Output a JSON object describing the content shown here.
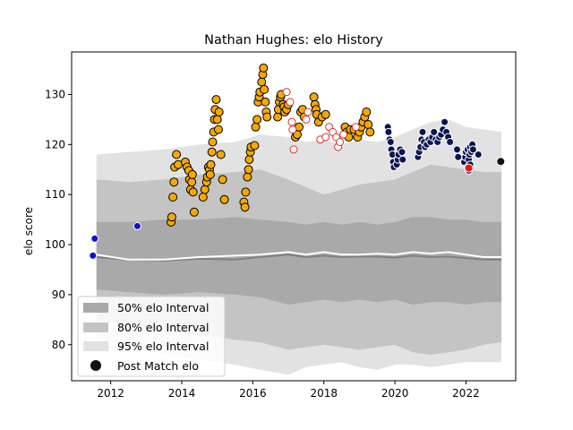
{
  "chart_data": {
    "type": "scatter",
    "title": "Nathan Hughes: elo History",
    "xlabel": "",
    "ylabel": "elo score",
    "xlim": [
      2010.9,
      2023.4
    ],
    "ylim": [
      72.8,
      138.5
    ],
    "x_ticks": [
      2012,
      2014,
      2016,
      2018,
      2020,
      2022
    ],
    "y_ticks": [
      80,
      90,
      100,
      110,
      120,
      130
    ],
    "grid": false,
    "legend_position": "lower-left",
    "legend": [
      {
        "label": "50% elo Interval",
        "kind": "band",
        "color": "#a9a9a9"
      },
      {
        "label": "80% elo Interval",
        "kind": "band",
        "color": "#c4c4c4"
      },
      {
        "label": "95% elo Interval",
        "kind": "band",
        "color": "#e2e2e2"
      },
      {
        "label": "Post Match elo",
        "kind": "marker",
        "color": "#000000"
      }
    ],
    "colors": {
      "band_50": "#a9a9a9",
      "band_80": "#c4c4c4",
      "band_95": "#e2e2e2",
      "mean_line": "#ffffff",
      "median_line": "#808080",
      "blue": "#1010cc",
      "orange": "#f5a800",
      "hollow_red": "#e03030",
      "navy": "#0b1650",
      "red": "#ee1111",
      "black": "#111111"
    },
    "intervals": {
      "x": [
        2011.6,
        2012.5,
        2013.5,
        2014.5,
        2015.5,
        2016.2,
        2017.0,
        2017.5,
        2018.0,
        2018.5,
        2019.0,
        2019.5,
        2020.0,
        2020.5,
        2021.0,
        2021.5,
        2022.0,
        2022.5,
        2023.0
      ],
      "hi95": [
        118.0,
        118.5,
        119.0,
        120.0,
        120.5,
        122.0,
        121.5,
        120.5,
        121.0,
        120.0,
        121.0,
        120.5,
        121.5,
        123.0,
        124.5,
        125.0,
        123.5,
        123.0,
        122.5
      ],
      "hi80": [
        113.0,
        112.5,
        113.0,
        114.0,
        114.5,
        115.0,
        113.0,
        111.5,
        110.0,
        111.0,
        112.0,
        112.5,
        113.0,
        114.5,
        116.0,
        115.5,
        115.0,
        114.5,
        114.5
      ],
      "hi50": [
        104.5,
        104.5,
        105.0,
        105.0,
        105.5,
        105.0,
        104.5,
        104.0,
        104.5,
        104.0,
        104.5,
        104.0,
        104.5,
        105.5,
        105.5,
        105.0,
        105.0,
        104.5,
        104.5
      ],
      "mean": [
        98.0,
        97.0,
        97.0,
        97.5,
        97.8,
        98.0,
        98.5,
        98.0,
        98.5,
        98.0,
        98.0,
        98.2,
        98.0,
        98.5,
        98.2,
        98.5,
        98.0,
        97.5,
        97.5
      ],
      "median": [
        97.5,
        97.0,
        96.8,
        97.2,
        97.0,
        97.5,
        98.0,
        97.5,
        97.8,
        97.5,
        97.6,
        97.6,
        97.4,
        97.8,
        97.5,
        97.6,
        97.3,
        97.0,
        97.0
      ],
      "lo50": [
        91.0,
        90.5,
        90.0,
        90.5,
        90.0,
        89.5,
        88.0,
        88.5,
        89.0,
        88.5,
        89.0,
        88.5,
        89.0,
        88.0,
        88.5,
        88.5,
        88.0,
        88.5,
        88.5
      ],
      "lo80": [
        85.0,
        84.0,
        82.5,
        82.0,
        81.0,
        80.5,
        79.0,
        79.5,
        80.0,
        79.5,
        79.0,
        79.5,
        80.0,
        78.5,
        78.0,
        78.5,
        79.0,
        80.0,
        80.5
      ],
      "lo95": [
        81.0,
        80.0,
        78.0,
        77.0,
        76.0,
        75.0,
        74.0,
        75.5,
        76.0,
        76.5,
        75.5,
        75.0,
        76.0,
        76.0,
        75.5,
        76.0,
        76.5,
        76.5,
        76.5
      ]
    },
    "series": [
      {
        "style": "blue",
        "points": [
          [
            2011.55,
            101.2
          ],
          [
            2011.5,
            97.8
          ],
          [
            2012.75,
            103.7
          ]
        ]
      },
      {
        "style": "orange",
        "points": [
          [
            2013.7,
            104.5
          ],
          [
            2013.72,
            105.5
          ],
          [
            2013.75,
            109.5
          ],
          [
            2013.78,
            112.5
          ],
          [
            2013.8,
            115.5
          ],
          [
            2013.85,
            118.0
          ],
          [
            2013.9,
            116.0
          ],
          [
            2014.1,
            116.5
          ],
          [
            2014.15,
            115.5
          ],
          [
            2014.2,
            114.8
          ],
          [
            2014.22,
            113.0
          ],
          [
            2014.25,
            111.0
          ],
          [
            2014.28,
            112.5
          ],
          [
            2014.3,
            114.0
          ],
          [
            2014.32,
            110.5
          ],
          [
            2014.35,
            106.5
          ],
          [
            2014.6,
            109.5
          ],
          [
            2014.65,
            111.0
          ],
          [
            2014.7,
            112.5
          ],
          [
            2014.72,
            113.5
          ],
          [
            2014.75,
            115.5
          ],
          [
            2014.78,
            115.0
          ],
          [
            2014.8,
            114.0
          ],
          [
            2014.82,
            116.0
          ],
          [
            2014.85,
            118.5
          ],
          [
            2014.87,
            120.5
          ],
          [
            2014.9,
            122.5
          ],
          [
            2014.92,
            125.0
          ],
          [
            2014.94,
            127.0
          ],
          [
            2014.97,
            129.0
          ],
          [
            2015.0,
            125.0
          ],
          [
            2015.03,
            123.0
          ],
          [
            2015.05,
            126.5
          ],
          [
            2015.1,
            118.0
          ],
          [
            2015.15,
            113.0
          ],
          [
            2015.2,
            109.0
          ],
          [
            2015.75,
            108.5
          ],
          [
            2015.78,
            107.5
          ],
          [
            2015.8,
            110.5
          ],
          [
            2015.85,
            113.5
          ],
          [
            2015.88,
            115.0
          ],
          [
            2015.9,
            117.0
          ],
          [
            2015.93,
            118.5
          ],
          [
            2015.95,
            119.5
          ],
          [
            2016.05,
            119.8
          ],
          [
            2016.08,
            123.5
          ],
          [
            2016.12,
            125.0
          ],
          [
            2016.15,
            128.5
          ],
          [
            2016.18,
            129.5
          ],
          [
            2016.2,
            130.5
          ],
          [
            2016.25,
            132.5
          ],
          [
            2016.28,
            134.0
          ],
          [
            2016.3,
            135.3
          ],
          [
            2016.32,
            131.0
          ],
          [
            2016.35,
            128.5
          ],
          [
            2016.38,
            126.5
          ],
          [
            2016.4,
            125.5
          ],
          [
            2016.7,
            125.5
          ],
          [
            2016.72,
            127.0
          ],
          [
            2016.75,
            128.5
          ],
          [
            2016.78,
            129.5
          ],
          [
            2016.8,
            130.0
          ],
          [
            2016.85,
            128.0
          ],
          [
            2016.88,
            127.5
          ],
          [
            2016.9,
            126.5
          ],
          [
            2016.95,
            127.0
          ],
          [
            2017.0,
            128.0
          ],
          [
            2017.2,
            121.5
          ],
          [
            2017.25,
            122.0
          ],
          [
            2017.3,
            123.5
          ],
          [
            2017.35,
            126.5
          ],
          [
            2017.4,
            127.0
          ],
          [
            2017.45,
            125.5
          ],
          [
            2017.72,
            129.5
          ],
          [
            2017.75,
            128.0
          ],
          [
            2017.78,
            127.0
          ],
          [
            2017.8,
            126.0
          ],
          [
            2017.85,
            124.5
          ],
          [
            2017.95,
            125.5
          ],
          [
            2018.05,
            126.0
          ],
          [
            2018.6,
            123.5
          ],
          [
            2018.65,
            122.5
          ],
          [
            2018.7,
            121.5
          ],
          [
            2018.75,
            123.0
          ],
          [
            2018.85,
            123.0
          ],
          [
            2018.95,
            121.5
          ],
          [
            2019.0,
            122.5
          ],
          [
            2019.05,
            123.5
          ],
          [
            2019.1,
            124.5
          ],
          [
            2019.15,
            125.5
          ],
          [
            2019.2,
            126.5
          ],
          [
            2019.25,
            124.0
          ],
          [
            2019.3,
            122.5
          ]
        ]
      },
      {
        "style": "hollow_red",
        "points": [
          [
            2016.95,
            130.5
          ],
          [
            2017.05,
            128.5
          ],
          [
            2017.1,
            124.5
          ],
          [
            2017.12,
            123.0
          ],
          [
            2017.15,
            119.0
          ],
          [
            2017.5,
            125.0
          ],
          [
            2017.55,
            126.5
          ],
          [
            2017.9,
            121.0
          ],
          [
            2018.05,
            121.5
          ],
          [
            2018.15,
            123.5
          ],
          [
            2018.25,
            122.5
          ],
          [
            2018.35,
            121.5
          ],
          [
            2018.4,
            119.5
          ],
          [
            2018.45,
            120.5
          ],
          [
            2018.55,
            122.0
          ],
          [
            2018.9,
            123.5
          ]
        ]
      },
      {
        "style": "navy",
        "points": [
          [
            2019.8,
            123.5
          ],
          [
            2019.82,
            122.5
          ],
          [
            2019.85,
            121.0
          ],
          [
            2019.88,
            120.5
          ],
          [
            2019.9,
            119.0
          ],
          [
            2019.93,
            118.0
          ],
          [
            2019.95,
            116.5
          ],
          [
            2019.97,
            115.5
          ],
          [
            2020.05,
            116.0
          ],
          [
            2020.08,
            117.0
          ],
          [
            2020.1,
            118.0
          ],
          [
            2020.15,
            119.0
          ],
          [
            2020.2,
            118.5
          ],
          [
            2020.22,
            117.0
          ],
          [
            2020.65,
            117.5
          ],
          [
            2020.68,
            118.5
          ],
          [
            2020.72,
            119.5
          ],
          [
            2020.75,
            121.0
          ],
          [
            2020.78,
            122.5
          ],
          [
            2020.82,
            120.5
          ],
          [
            2020.85,
            119.5
          ],
          [
            2020.9,
            120.0
          ],
          [
            2020.95,
            121.0
          ],
          [
            2021.0,
            120.5
          ],
          [
            2021.05,
            121.5
          ],
          [
            2021.1,
            122.5
          ],
          [
            2021.15,
            121.0
          ],
          [
            2021.2,
            120.5
          ],
          [
            2021.25,
            121.5
          ],
          [
            2021.3,
            122.0
          ],
          [
            2021.35,
            123.0
          ],
          [
            2021.4,
            124.5
          ],
          [
            2021.45,
            122.5
          ],
          [
            2021.5,
            121.5
          ],
          [
            2021.55,
            120.5
          ],
          [
            2021.75,
            119.0
          ],
          [
            2021.78,
            117.5
          ],
          [
            2021.95,
            116.5
          ],
          [
            2021.98,
            117.5
          ],
          [
            2022.0,
            118.5
          ],
          [
            2022.05,
            119.0
          ],
          [
            2022.08,
            117.0
          ],
          [
            2022.1,
            118.0
          ],
          [
            2022.12,
            119.5
          ],
          [
            2022.15,
            118.5
          ],
          [
            2022.18,
            120.0
          ],
          [
            2022.2,
            119.0
          ],
          [
            2022.05,
            115.5
          ],
          [
            2022.08,
            114.8
          ],
          [
            2022.12,
            116.0
          ],
          [
            2022.35,
            118.0
          ]
        ]
      },
      {
        "style": "red",
        "points": [
          [
            2022.08,
            115.3
          ]
        ]
      },
      {
        "style": "black",
        "points": [
          [
            2022.98,
            116.6
          ]
        ]
      }
    ]
  }
}
